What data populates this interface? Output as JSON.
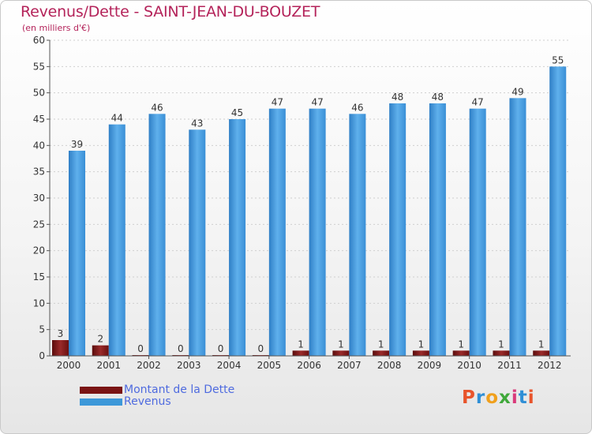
{
  "title": "Revenus/Dette - SAINT-JEAN-DU-BOUZET",
  "subtitle": "(en milliers d'€)",
  "logo": {
    "text": "Proxiti",
    "letters": [
      "P",
      "r",
      "o",
      "x",
      "i",
      "t",
      "i"
    ],
    "colors": [
      "#e8542b",
      "#2f8fd6",
      "#f0a01c",
      "#3fa83a",
      "#d93a7a",
      "#2f8fd6",
      "#e8542b"
    ]
  },
  "colors": {
    "dette": "#7a1414",
    "revenus": "#3d98d9",
    "axis_text": "#333333",
    "grid": "#cfcfcf"
  },
  "chart_data": {
    "type": "bar",
    "title": "Revenus/Dette - SAINT-JEAN-DU-BOUZET",
    "subtitle": "(en milliers d'€)",
    "categories": [
      "2000",
      "2001",
      "2002",
      "2003",
      "2004",
      "2005",
      "2006",
      "2007",
      "2008",
      "2009",
      "2010",
      "2011",
      "2012"
    ],
    "series": [
      {
        "name": "Montant de la Dette",
        "values": [
          3,
          2,
          0,
          0,
          0,
          0,
          1,
          1,
          1,
          1,
          1,
          1,
          1
        ]
      },
      {
        "name": "Revenus",
        "values": [
          39,
          44,
          46,
          43,
          45,
          47,
          47,
          46,
          48,
          48,
          47,
          49,
          55
        ]
      }
    ],
    "ylim": [
      0,
      60
    ],
    "yticks": [
      0,
      5,
      10,
      15,
      20,
      25,
      30,
      35,
      40,
      45,
      50,
      55,
      60
    ],
    "grid": true,
    "legend": "bottom-left"
  }
}
